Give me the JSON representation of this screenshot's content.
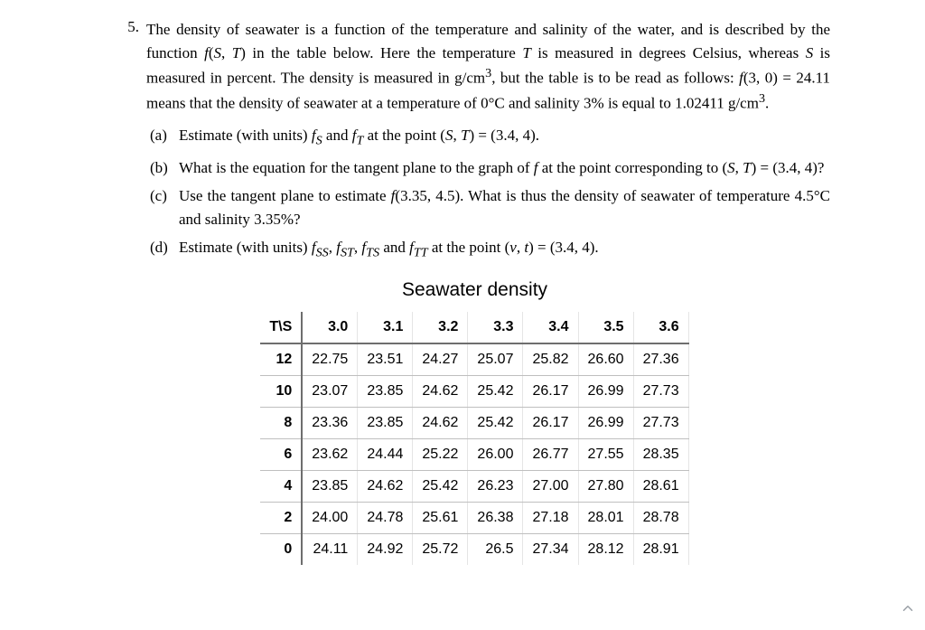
{
  "problem_number": "5.",
  "problem_text_html": "The density of seawater is a function of the temperature and salinity of the water, and is described by the function <span class='math'>f</span>(<span class='math'>S</span>,&nbsp;<span class='math'>T</span>) in the table below. Here the temperature <span class='math'>T</span> is measured in degrees Celsius, whereas <span class='math'>S</span> is measured in percent. The density is measured in g/cm<sup>3</sup>, but the table is to be read as follows: <span class='math'>f</span>(3,&nbsp;0) = 24.11 means that the density of seawater at a temperature of 0°C and salinity 3% is equal to 1.02411 g/cm<sup>3</sup>.",
  "subparts": [
    {
      "label": "(a)",
      "text_html": "Estimate (with units) <span class='math'>f<sub>S</sub></span> and <span class='math'>f<sub>T</sub></span> at the point (<span class='math'>S</span>,&nbsp;<span class='math'>T</span>) = (3.4,&nbsp;4)."
    },
    {
      "label": "(b)",
      "text_html": "What is the equation for the tangent plane to the graph of <span class='math'>f</span> at the point corresponding to (<span class='math'>S</span>,&nbsp;<span class='math'>T</span>) = (3.4,&nbsp;4)?"
    },
    {
      "label": "(c)",
      "text_html": "Use the tangent plane to estimate <span class='math'>f</span>(3.35,&nbsp;4.5). What is thus the density of seawater of temperature 4.5°C and salinity 3.35%?"
    },
    {
      "label": "(d)",
      "text_html": "Estimate (with units) <span class='math'>f<sub>SS</sub></span>, <span class='math'>f<sub>ST</sub></span>, <span class='math'>f<sub>TS</sub></span> and <span class='math'>f<sub>TT</sub></span> at the point (<span class='math'>v</span>,&nbsp;<span class='math'>t</span>) = (3.4,&nbsp;4)."
    }
  ],
  "table": {
    "title": "Seawater density",
    "corner": "T\\S",
    "columns": [
      "3.0",
      "3.1",
      "3.2",
      "3.3",
      "3.4",
      "3.5",
      "3.6"
    ],
    "rows": [
      {
        "h": "12",
        "cells": [
          "22.75",
          "23.51",
          "24.27",
          "25.07",
          "25.82",
          "26.60",
          "27.36"
        ]
      },
      {
        "h": "10",
        "cells": [
          "23.07",
          "23.85",
          "24.62",
          "25.42",
          "26.17",
          "26.99",
          "27.73"
        ]
      },
      {
        "h": "8",
        "cells": [
          "23.36",
          "23.85",
          "24.62",
          "25.42",
          "26.17",
          "26.99",
          "27.73"
        ]
      },
      {
        "h": "6",
        "cells": [
          "23.62",
          "24.44",
          "25.22",
          "26.00",
          "26.77",
          "27.55",
          "28.35"
        ]
      },
      {
        "h": "4",
        "cells": [
          "23.85",
          "24.62",
          "25.42",
          "26.23",
          "27.00",
          "27.80",
          "28.61"
        ]
      },
      {
        "h": "2",
        "cells": [
          "24.00",
          "24.78",
          "25.61",
          "26.38",
          "27.18",
          "28.01",
          "28.78"
        ]
      },
      {
        "h": "0",
        "cells": [
          "24.11",
          "24.92",
          "25.72",
          "26.5",
          "27.34",
          "28.12",
          "28.91"
        ]
      }
    ],
    "header_border_color": "#6e6e6e",
    "row_border_color": "#bfbfbf",
    "font_family": "Helvetica",
    "title_fontsize": 21,
    "cell_fontsize": 16
  }
}
